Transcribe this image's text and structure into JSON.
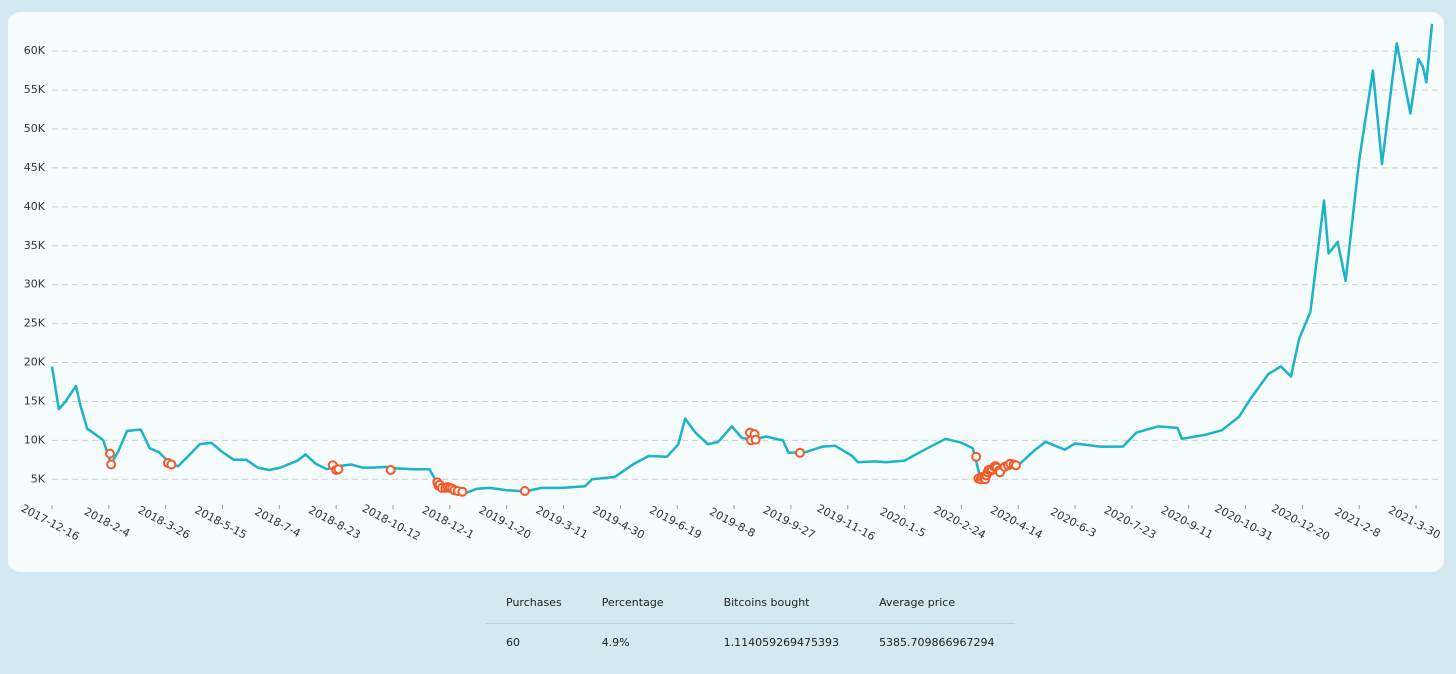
{
  "chart_data": {
    "type": "line",
    "x": [
      "2017-12-16",
      "2017-12-22",
      "2017-12-28",
      "2018-1-6",
      "2018-1-10",
      "2018-1-16",
      "2018-1-23",
      "2018-1-30",
      "2018-2-6",
      "2018-2-12",
      "2018-2-20",
      "2018-3-4",
      "2018-3-12",
      "2018-3-20",
      "2018-3-31",
      "2018-4-6",
      "2018-4-15",
      "2018-4-25",
      "2018-5-5",
      "2018-5-15",
      "2018-5-25",
      "2018-6-5",
      "2018-6-15",
      "2018-6-25",
      "2018-7-5",
      "2018-7-20",
      "2018-7-27",
      "2018-8-5",
      "2018-8-15",
      "2018-8-25",
      "2018-9-5",
      "2018-9-15",
      "2018-9-25",
      "2018-10-5",
      "2018-10-15",
      "2018-10-30",
      "2018-11-13",
      "2018-11-20",
      "2018-11-25",
      "2018-12-5",
      "2018-12-15",
      "2018-12-25",
      "2019-1-5",
      "2019-1-20",
      "2019-2-5",
      "2019-2-20",
      "2019-3-10",
      "2019-3-30",
      "2019-4-5",
      "2019-4-25",
      "2019-5-12",
      "2019-5-25",
      "2019-6-10",
      "2019-6-20",
      "2019-6-26",
      "2019-7-5",
      "2019-7-16",
      "2019-7-25",
      "2019-8-6",
      "2019-8-15",
      "2019-8-25",
      "2019-9-5",
      "2019-9-20",
      "2019-9-25",
      "2019-10-10",
      "2019-10-25",
      "2019-11-5",
      "2019-11-20",
      "2019-11-25",
      "2019-12-10",
      "2019-12-20",
      "2020-1-5",
      "2020-1-20",
      "2020-2-10",
      "2020-2-24",
      "2020-3-5",
      "2020-3-12",
      "2020-3-20",
      "2020-4-1",
      "2020-4-14",
      "2020-4-29",
      "2020-5-8",
      "2020-5-25",
      "2020-6-3",
      "2020-6-25",
      "2020-7-15",
      "2020-7-27",
      "2020-8-15",
      "2020-9-1",
      "2020-9-5",
      "2020-9-25",
      "2020-10-10",
      "2020-10-25",
      "2020-11-5",
      "2020-11-20",
      "2020-12-1",
      "2020-12-10",
      "2020-12-17",
      "2020-12-27",
      "2021-1-8",
      "2021-1-12",
      "2021-1-20",
      "2021-1-27",
      "2021-2-8",
      "2021-2-20",
      "2021-2-28",
      "2021-3-13",
      "2021-3-25",
      "2021-4-1",
      "2021-4-5",
      "2021-4-8",
      "2021-4-13"
    ],
    "series": [
      {
        "color": "#1cb3c8",
        "values": [
          19500,
          14000,
          15000,
          17000,
          14500,
          11500,
          10800,
          10000,
          7000,
          8500,
          11200,
          11400,
          9000,
          8500,
          6900,
          6700,
          8000,
          9500,
          9700,
          8500,
          7500,
          7500,
          6500,
          6200,
          6500,
          7400,
          8200,
          7000,
          6300,
          6700,
          6900,
          6500,
          6500,
          6600,
          6400,
          6300,
          6300,
          4500,
          4000,
          3800,
          3250,
          3800,
          3900,
          3600,
          3450,
          3900,
          3900,
          4100,
          5000,
          5300,
          7000,
          8000,
          7900,
          9500,
          12800,
          11000,
          9500,
          9800,
          11800,
          10300,
          10100,
          10500,
          10000,
          8400,
          8500,
          9200,
          9300,
          8000,
          7200,
          7300,
          7200,
          7400,
          8600,
          10200,
          9700,
          9000,
          5000,
          6200,
          6500,
          6800,
          8800,
          9800,
          8800,
          9600,
          9200,
          9200,
          11000,
          11800,
          11600,
          10200,
          10700,
          11300,
          13000,
          15500,
          18500,
          19500,
          18200,
          23000,
          26500,
          40800,
          34000,
          35500,
          30500,
          46000,
          57500,
          45500,
          61000,
          52000,
          59000,
          58000,
          56000,
          63500
        ]
      }
    ],
    "purchases": {
      "color": "#f05a28",
      "x": [
        "2018-2-5",
        "2018-2-6",
        "2018-3-28",
        "2018-3-31",
        "2018-8-20",
        "2018-8-23",
        "2018-8-25",
        "2018-10-10",
        "2018-11-20",
        "2018-11-21",
        "2018-11-22",
        "2018-11-24",
        "2018-11-27",
        "2018-11-29",
        "2018-12-1",
        "2018-12-3",
        "2018-12-5",
        "2018-12-8",
        "2018-12-12",
        "2019-2-5",
        "2019-8-22",
        "2019-8-23",
        "2019-8-26",
        "2019-8-27",
        "2019-10-5",
        "2020-3-8",
        "2020-3-10",
        "2020-3-12",
        "2020-3-13",
        "2020-3-15",
        "2020-3-16",
        "2020-3-17",
        "2020-3-18",
        "2020-3-19",
        "2020-3-21",
        "2020-3-22",
        "2020-3-24",
        "2020-3-25",
        "2020-3-26",
        "2020-3-28",
        "2020-3-29",
        "2020-4-2",
        "2020-4-5",
        "2020-4-7",
        "2020-4-10",
        "2020-4-12"
      ],
      "values": [
        8300,
        6900,
        7100,
        6900,
        6800,
        6200,
        6300,
        6200,
        4600,
        4200,
        4300,
        3900,
        3900,
        4000,
        3900,
        3800,
        3600,
        3500,
        3400,
        3500,
        11000,
        10000,
        10800,
        10100,
        8400,
        7900,
        5100,
        5000,
        5300,
        5300,
        5000,
        5500,
        5900,
        6200,
        6100,
        6300,
        6600,
        6700,
        6500,
        6100,
        5900,
        6600,
        6800,
        7000,
        6900,
        6800
      ]
    },
    "xlim": [
      "2017-12-16",
      "2021-4-13"
    ],
    "xticks": [
      "2017-12-16",
      "2018-2-4",
      "2018-3-26",
      "2018-5-15",
      "2018-7-4",
      "2018-8-23",
      "2018-10-12",
      "2018-12-1",
      "2019-1-20",
      "2019-3-11",
      "2019-4-30",
      "2019-6-19",
      "2019-8-8",
      "2019-9-27",
      "2019-11-16",
      "2020-1-5",
      "2020-2-24",
      "2020-4-14",
      "2020-6-3",
      "2020-7-23",
      "2020-9-11",
      "2020-10-31",
      "2020-12-20",
      "2021-2-8",
      "2021-3-30"
    ],
    "ylim": [
      1700,
      64000
    ],
    "yticks": [
      {
        "value": 5000,
        "label": "5K"
      },
      {
        "value": 10000,
        "label": "10K"
      },
      {
        "value": 15000,
        "label": "15K"
      },
      {
        "value": 20000,
        "label": "20K"
      },
      {
        "value": 25000,
        "label": "25K"
      },
      {
        "value": 30000,
        "label": "30K"
      },
      {
        "value": 35000,
        "label": "35K"
      },
      {
        "value": 40000,
        "label": "40K"
      },
      {
        "value": 45000,
        "label": "45K"
      },
      {
        "value": 50000,
        "label": "50K"
      },
      {
        "value": 55000,
        "label": "55K"
      },
      {
        "value": 60000,
        "label": "60K"
      }
    ],
    "grid": true
  },
  "table": {
    "headers": [
      "Purchases",
      "Percentage",
      "Bitcoins bought",
      "Average price"
    ],
    "rows": [
      [
        "60",
        "4.9%",
        "1.114059269475393",
        "5385.709866967294"
      ]
    ]
  }
}
